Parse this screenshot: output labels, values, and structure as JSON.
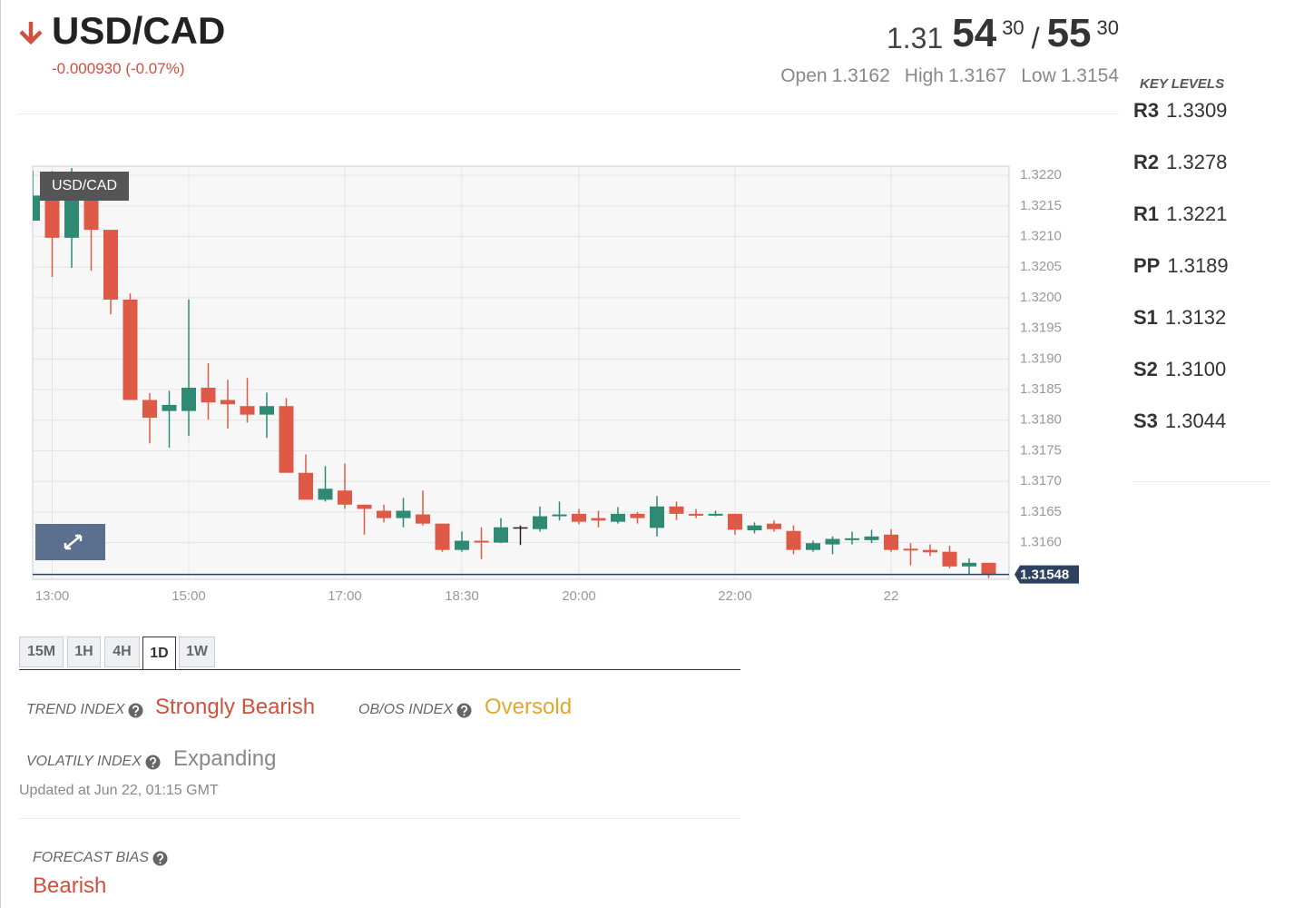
{
  "header": {
    "title": "USD/CAD",
    "change": "-0.000930 (-0.07%)",
    "price": {
      "bid_lead": "1.31",
      "bid_big": "54",
      "bid_pip": "30",
      "separator": "/",
      "ask_big": "55",
      "ask_pip": "30"
    },
    "ohl": [
      {
        "label": "Open",
        "value": "1.3162"
      },
      {
        "label": "High",
        "value": "1.3167"
      },
      {
        "label": "Low",
        "value": "1.3154"
      }
    ]
  },
  "key_levels": {
    "title": "KEY LEVELS",
    "levels": [
      {
        "name": "R3",
        "value": "1.3309"
      },
      {
        "name": "R2",
        "value": "1.3278"
      },
      {
        "name": "R1",
        "value": "1.3221"
      },
      {
        "name": "PP",
        "value": "1.3189"
      },
      {
        "name": "S1",
        "value": "1.3132"
      },
      {
        "name": "S2",
        "value": "1.3100"
      },
      {
        "name": "S3",
        "value": "1.3044"
      }
    ]
  },
  "chart_data": {
    "type": "candlestick",
    "label": "USD/CAD",
    "categories": [
      null,
      "13:00",
      null,
      null,
      null,
      null,
      null,
      null,
      "15:00",
      null,
      null,
      null,
      null,
      null,
      null,
      null,
      "17:00",
      null,
      null,
      null,
      null,
      null,
      "18:30",
      null,
      null,
      null,
      null,
      null,
      "20:00",
      null,
      null,
      null,
      null,
      null,
      null,
      null,
      "22:00",
      null,
      null,
      null,
      null,
      null,
      null,
      null,
      "22",
      null,
      null,
      null,
      null,
      null
    ],
    "open": [
      1.32126,
      1.32167,
      1.32098,
      1.32167,
      1.32111,
      1.31997,
      1.31833,
      1.31815,
      1.31815,
      1.31853,
      1.31833,
      1.31823,
      1.31809,
      1.31823,
      1.31714,
      1.3167,
      1.31685,
      1.31662,
      1.31652,
      1.3164,
      1.31646,
      1.31631,
      1.31588,
      1.31603,
      1.316,
      1.31625,
      1.31622,
      1.31643,
      1.31647,
      1.3164,
      1.31634,
      1.31647,
      1.31624,
      1.31659,
      1.31647,
      1.31644,
      1.31647,
      1.3162,
      1.31631,
      1.31619,
      1.31588,
      1.31597,
      1.31604,
      1.31604,
      1.31613,
      1.3159,
      1.31588,
      1.31585,
      1.31561,
      1.31567
    ],
    "high": [
      1.32207,
      1.32207,
      1.32212,
      1.32175,
      1.32111,
      1.32007,
      1.31844,
      1.31848,
      1.31997,
      1.31893,
      1.31866,
      1.31869,
      1.31845,
      1.31836,
      1.31744,
      1.31725,
      1.31729,
      1.31662,
      1.31662,
      1.31673,
      1.31685,
      1.31631,
      1.31618,
      1.31625,
      1.3164,
      1.31628,
      1.31659,
      1.31667,
      1.31655,
      1.31652,
      1.31658,
      1.3165,
      1.31676,
      1.31667,
      1.31655,
      1.31652,
      1.31647,
      1.31633,
      1.31636,
      1.31628,
      1.31603,
      1.3161,
      1.31618,
      1.31621,
      1.31622,
      1.31599,
      1.31597,
      1.31595,
      1.31574,
      1.31567
    ],
    "low": [
      1.32126,
      1.32034,
      1.32049,
      1.32044,
      1.31973,
      1.31833,
      1.31762,
      1.31755,
      1.31774,
      1.31801,
      1.31786,
      1.31796,
      1.31771,
      1.31714,
      1.3167,
      1.31667,
      1.31655,
      1.31613,
      1.31633,
      1.31625,
      1.31628,
      1.31585,
      1.31585,
      1.31573,
      1.31599,
      1.31596,
      1.31618,
      1.31636,
      1.3163,
      1.31625,
      1.31631,
      1.31631,
      1.3161,
      1.31637,
      1.3164,
      1.31643,
      1.31613,
      1.31615,
      1.31618,
      1.31581,
      1.31585,
      1.31581,
      1.31597,
      1.31599,
      1.31585,
      1.31563,
      1.31578,
      1.31558,
      1.31548,
      1.31542
    ],
    "close": [
      1.32167,
      1.32098,
      1.32167,
      1.32111,
      1.31997,
      1.31833,
      1.31804,
      1.31825,
      1.31853,
      1.31829,
      1.31826,
      1.31809,
      1.31823,
      1.31714,
      1.3167,
      1.31688,
      1.31662,
      1.31655,
      1.3164,
      1.31652,
      1.31631,
      1.31588,
      1.31603,
      1.316,
      1.31625,
      1.31625,
      1.31643,
      1.31646,
      1.31634,
      1.31636,
      1.31647,
      1.3164,
      1.31659,
      1.31647,
      1.31644,
      1.31647,
      1.31621,
      1.31628,
      1.31622,
      1.31588,
      1.31599,
      1.31606,
      1.31607,
      1.3161,
      1.31588,
      1.31587,
      1.31584,
      1.31561,
      1.31567,
      1.31548
    ],
    "up_color": "#2f8a73",
    "down_color": "#df5a46",
    "doji_color": "#222222",
    "last_price": 1.31548,
    "ylim": [
      1.3154,
      1.32215
    ],
    "yticks": [
      {
        "value": 1.322,
        "label": "1.3220"
      },
      1.3215,
      {
        "value": 1.321,
        "label": "1.3210"
      },
      1.3205,
      {
        "value": 1.32,
        "label": "1.3200"
      },
      1.3195,
      {
        "value": 1.319,
        "label": "1.3190"
      },
      1.3185,
      {
        "value": 1.318,
        "label": "1.3180"
      },
      1.3175,
      {
        "value": 1.317,
        "label": "1.3170"
      },
      1.3165,
      {
        "value": 1.316,
        "label": "1.3160"
      }
    ],
    "grid": true
  },
  "timeframes": {
    "tabs": [
      "15M",
      "1H",
      "4H",
      "1D",
      "1W"
    ],
    "active": 3
  },
  "indices": [
    {
      "label": "TREND INDEX",
      "value": "Strongly Bearish"
    },
    {
      "label": "OB/OS INDEX",
      "value": "Oversold"
    },
    {
      "label": "VOLATILY INDEX",
      "value": "Expanding"
    }
  ],
  "updated": "Updated at Jun 22, 01:15 GMT",
  "forecast": {
    "label": "FORECAST BIAS",
    "value": "Bearish"
  }
}
